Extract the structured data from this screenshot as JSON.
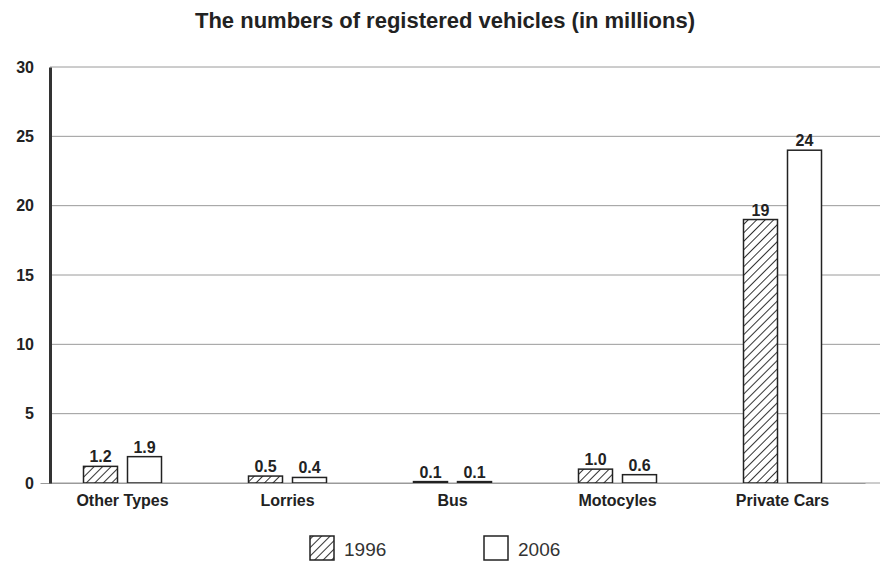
{
  "chart_data": {
    "type": "bar",
    "title": "The numbers of registered vehicles (in millions)",
    "categories": [
      "Other Types",
      "Lorries",
      "Bus",
      "Motocyles",
      "Private Cars"
    ],
    "series": [
      {
        "name": "1996",
        "color": "#333333",
        "values": [
          1.2,
          0.5,
          0.1,
          1.0,
          19
        ],
        "value_labels": [
          "1.2",
          "0.5",
          "0.1",
          "1.0",
          "19"
        ]
      },
      {
        "name": "2006",
        "color": "#ffffff",
        "values": [
          1.9,
          0.4,
          0.1,
          0.6,
          24
        ]
      }
    ],
    "ylim": [
      0,
      30
    ],
    "yticks": [
      0,
      5,
      10,
      15,
      20,
      25,
      30
    ],
    "grid": true,
    "data_labels": true,
    "legend": "bottom"
  }
}
